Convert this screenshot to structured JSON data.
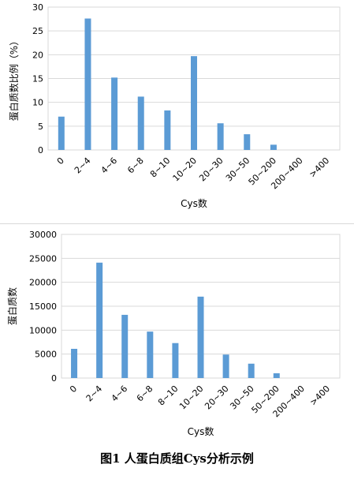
{
  "chart_data": [
    {
      "type": "bar",
      "categories": [
        "0",
        "2~4",
        "4~6",
        "6~8",
        "8~10",
        "10~20",
        "20~30",
        "30~50",
        "50~200",
        "200~400",
        ">400"
      ],
      "values": [
        7.0,
        27.6,
        15.2,
        11.2,
        8.3,
        19.7,
        5.6,
        3.3,
        1.1,
        0,
        0
      ],
      "xlabel": "Cys数",
      "ylabel": "蛋白质数比例（%）",
      "ylim": [
        0,
        30
      ],
      "yticks": [
        0,
        5,
        10,
        15,
        20,
        25,
        30
      ],
      "grid": true,
      "color": "#5b9bd5"
    },
    {
      "type": "bar",
      "categories": [
        "0",
        "2~4",
        "4~6",
        "6~8",
        "8~10",
        "10~20",
        "20~30",
        "30~50",
        "50~200",
        "200~400",
        ">400"
      ],
      "values": [
        6100,
        24100,
        13200,
        9700,
        7300,
        17000,
        4900,
        3000,
        1000,
        0,
        0
      ],
      "xlabel": "Cys数",
      "ylabel": "蛋白质数",
      "ylim": [
        0,
        30000
      ],
      "yticks": [
        0,
        5000,
        10000,
        15000,
        20000,
        25000,
        30000
      ],
      "grid": true,
      "color": "#5b9bd5"
    }
  ],
  "caption": "图1  人蛋白质组Cys分析示例"
}
